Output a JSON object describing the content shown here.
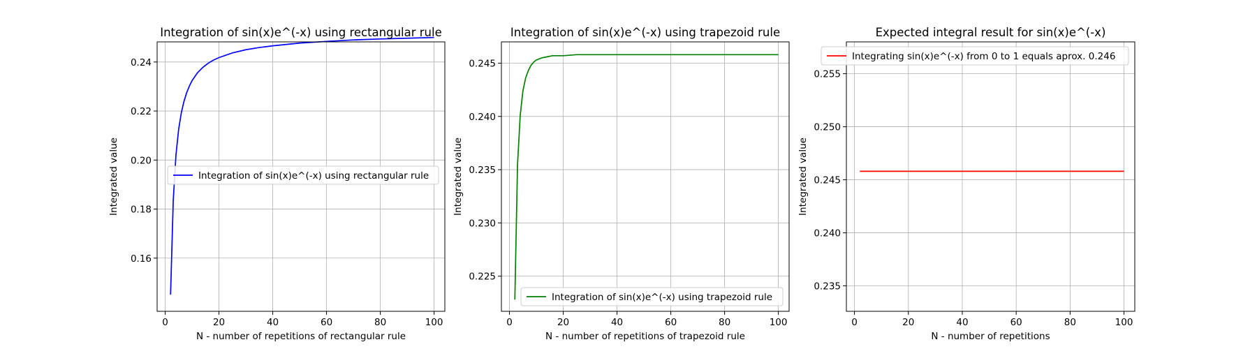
{
  "chart_data": [
    {
      "type": "line",
      "title": "Integration of sin(x)e^(-x) using rectangular rule",
      "xlabel": "N - number of repetitions of rectangular rule",
      "ylabel": "Integrated value",
      "xlim": [
        -3,
        104
      ],
      "ylim": [
        0.1383,
        0.2482
      ],
      "xticks": [
        0,
        20,
        40,
        60,
        80,
        100
      ],
      "xtick_labels": [
        "0",
        "20",
        "40",
        "60",
        "80",
        "100"
      ],
      "yticks": [
        0.16,
        0.18,
        0.2,
        0.22,
        0.24
      ],
      "ytick_labels": [
        "0.16",
        "0.18",
        "0.20",
        "0.22",
        "0.24"
      ],
      "grid": true,
      "legend": {
        "placement": "center-right"
      },
      "series": [
        {
          "name": "Integration of sin(x)e^(-x) using rectangular rule",
          "color": "#0000ff",
          "x": [
            2,
            3,
            4,
            5,
            6,
            7,
            8,
            9,
            10,
            12,
            14,
            16,
            18,
            20,
            25,
            30,
            35,
            40,
            50,
            60,
            70,
            80,
            90,
            100
          ],
          "y": [
            0.1451,
            0.1836,
            0.202,
            0.2125,
            0.2193,
            0.224,
            0.2275,
            0.2302,
            0.2324,
            0.2356,
            0.2378,
            0.2395,
            0.2408,
            0.2418,
            0.2437,
            0.245,
            0.2459,
            0.2466,
            0.2477,
            0.2484,
            0.249,
            0.2494,
            0.2497,
            0.25
          ]
        }
      ]
    },
    {
      "type": "line",
      "title": "Integration of sin(x)e^(-x) using trapezoid rule",
      "xlabel": "N - number of repetitions of trapezoid rule",
      "ylabel": "Integrated value",
      "xlim": [
        -3,
        104
      ],
      "ylim": [
        0.2217,
        0.247
      ],
      "xticks": [
        0,
        20,
        40,
        60,
        80,
        100
      ],
      "xtick_labels": [
        "0",
        "20",
        "40",
        "60",
        "80",
        "100"
      ],
      "yticks": [
        0.225,
        0.23,
        0.235,
        0.24,
        0.245
      ],
      "ytick_labels": [
        "0.225",
        "0.230",
        "0.235",
        "0.240",
        "0.245"
      ],
      "grid": true,
      "legend": {
        "placement": "lower-right"
      },
      "series": [
        {
          "name": "Integration of sin(x)e^(-x) using trapezoid rule",
          "color": "#008000",
          "x": [
            2,
            3,
            4,
            5,
            6,
            7,
            8,
            9,
            10,
            12,
            14,
            16,
            18,
            20,
            25,
            30,
            40,
            50,
            60,
            80,
            100
          ],
          "y": [
            0.2228,
            0.2355,
            0.2401,
            0.2424,
            0.2436,
            0.2443,
            0.2448,
            0.2451,
            0.2453,
            0.2455,
            0.2456,
            0.2457,
            0.2457,
            0.2457,
            0.2458,
            0.2458,
            0.2458,
            0.2458,
            0.2458,
            0.2458,
            0.2458
          ]
        }
      ]
    },
    {
      "type": "line",
      "title": "Expected integral result for sin(x)e^(-x)",
      "xlabel": "N - number of repetitions",
      "ylabel": "Integrated value",
      "xlim": [
        -3,
        104
      ],
      "ylim": [
        0.2326,
        0.258
      ],
      "xticks": [
        0,
        20,
        40,
        60,
        80,
        100
      ],
      "xtick_labels": [
        "0",
        "20",
        "40",
        "60",
        "80",
        "100"
      ],
      "yticks": [
        0.235,
        0.24,
        0.245,
        0.25,
        0.255
      ],
      "ytick_labels": [
        "0.235",
        "0.240",
        "0.245",
        "0.250",
        "0.255"
      ],
      "grid": true,
      "legend": {
        "placement": "top-left"
      },
      "series": [
        {
          "name": "Integrating sin(x)e^(-x) from 0 to 1 equals aprox. 0.246",
          "color": "#ff0000",
          "x": [
            2,
            100
          ],
          "y": [
            0.2458,
            0.2458
          ]
        }
      ]
    }
  ]
}
